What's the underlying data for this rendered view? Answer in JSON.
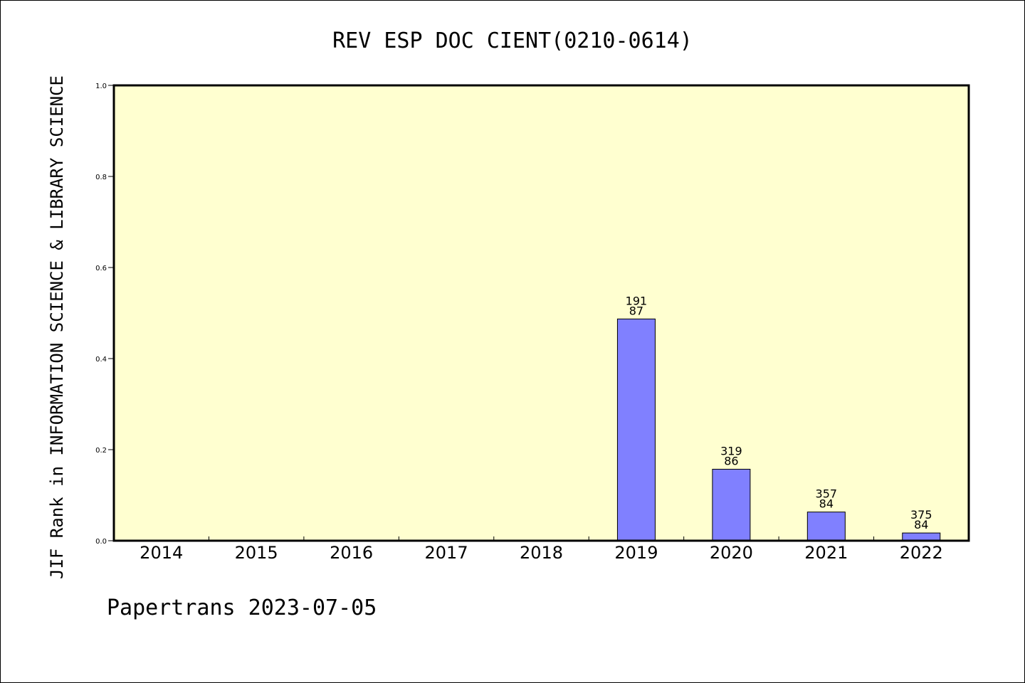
{
  "chart_data": {
    "type": "bar",
    "title": "REV ESP DOC CIENT(0210-0614)",
    "xlabel": "",
    "ylabel": "JIF Rank in INFORMATION SCIENCE & LIBRARY SCIENCE",
    "ylim": [
      0,
      1.0
    ],
    "yticks": [
      "0.0",
      "0.2",
      "0.4",
      "0.6",
      "0.8",
      "1.0"
    ],
    "categories": [
      "2014",
      "2015",
      "2016",
      "2017",
      "2018",
      "2019",
      "2020",
      "2021",
      "2022"
    ],
    "values": [
      null,
      null,
      null,
      null,
      null,
      0.487,
      0.157,
      0.063,
      0.017
    ],
    "labels": [
      null,
      null,
      null,
      null,
      null,
      [
        "191",
        "87"
      ],
      [
        "319",
        "86"
      ],
      [
        "357",
        "84"
      ],
      [
        "375",
        "84"
      ]
    ],
    "grid": false,
    "colors": {
      "plot_bg": "#ffffd0",
      "bar": "#8080ff",
      "bar_stroke": "#000000"
    }
  },
  "footer": "Papertrans 2023-07-05"
}
